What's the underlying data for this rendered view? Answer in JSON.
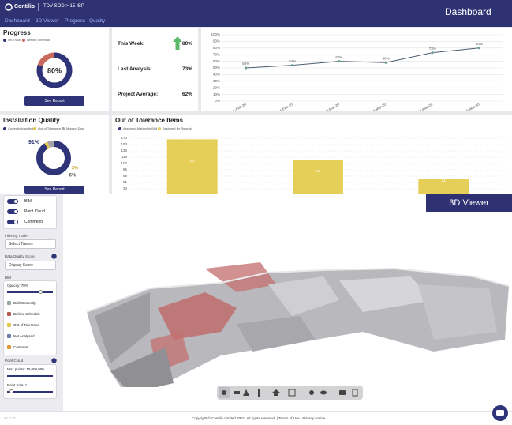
{
  "header": {
    "logo": "Contilio",
    "breadcrumb": "TDV SOD > 15-IBP",
    "page_title": "Dashboard"
  },
  "nav": [
    "Dashboard",
    "3D Viewer",
    "Progress",
    "Quality"
  ],
  "progress": {
    "title": "Progress",
    "type": "donut",
    "series": [
      {
        "name": "On Track",
        "color": "#2e3477",
        "value": 80,
        "value_label": "80%"
      },
      {
        "name": "Behind Schedule",
        "color": "#c8695e",
        "value": 20
      }
    ],
    "button": "See Report"
  },
  "stats": [
    {
      "label": "This Week:",
      "value": "80%"
    },
    {
      "label": "Last Analysis:",
      "value": "73%"
    },
    {
      "label": "Project Average:",
      "value": "62%"
    }
  ],
  "trend_chart": {
    "type": "line",
    "x": [
      "17-Feb-20",
      "24-Feb-20",
      "02-Mar-20",
      "16-Mar-20",
      "23-Mar-20",
      "30-Mar-20"
    ],
    "values": [
      50,
      54,
      60,
      58,
      73,
      80
    ],
    "value_labels": [
      "50%",
      "54%",
      "60%",
      "58%",
      "73%",
      "80%"
    ],
    "color": "#4b5c70",
    "ylim": [
      0,
      100
    ],
    "yticks": [
      {
        "value": 0,
        "label": "0%"
      },
      {
        "value": 10,
        "label": "10%"
      },
      {
        "value": 20,
        "label": "20%"
      },
      {
        "value": 30,
        "label": "30%"
      },
      {
        "value": 40,
        "label": "40%"
      },
      {
        "value": 50,
        "label": "50%"
      },
      {
        "value": 60,
        "label": "60%"
      },
      {
        "value": 70,
        "label": "70%"
      },
      {
        "value": 80,
        "label": "80%"
      },
      {
        "value": 90,
        "label": "90%"
      },
      {
        "value": 100,
        "label": "100%"
      }
    ],
    "grid": true
  },
  "quality": {
    "title": "Installation Quality",
    "type": "donut",
    "series": [
      {
        "name": "Correctly Installed",
        "color": "#2e3477",
        "value": 91,
        "value_label": "91%"
      },
      {
        "name": "Out of Tolerance",
        "color": "#e3c84c",
        "value": 3,
        "value_label": "3%"
      },
      {
        "name": "Missing Data",
        "color": "#a4a4a8",
        "value": 6,
        "value_label": "6%"
      }
    ],
    "button": "See Report"
  },
  "tolerance_chart": {
    "type": "bar",
    "title": "Out of Tolerance Items",
    "categories": [
      null,
      null,
      null
    ],
    "series": [
      {
        "name": "Assigned Marked in BIM",
        "color": "#2e3477",
        "values": [
          null,
          null,
          null
        ]
      },
      {
        "name": "Assigned for Rework",
        "color": "#e6cf58",
        "values": [
          167,
          112,
          61
        ]
      }
    ],
    "ylim": [
      0,
      170
    ],
    "yticks": [
      34,
      51,
      68,
      85,
      102,
      119,
      136,
      153,
      170
    ],
    "grid": true
  },
  "viewer": {
    "tab": "3D Viewer",
    "toggles": [
      "BIM",
      "Point Cloud",
      "Comments"
    ],
    "filter_label": "Filter by Trade",
    "filter_select": "Select Trades",
    "score_label": "Data Quality Score",
    "score_select": "Display Score",
    "bim_label": "BIM",
    "opacity": "Opacity: 78%",
    "legend": [
      {
        "name": "Built Correctly",
        "color": "#9aa89c"
      },
      {
        "name": "Behind Schedule",
        "color": "#b85a55"
      },
      {
        "name": "Out of Tolerance",
        "color": "#e3c84c"
      },
      {
        "name": "Not Analysed",
        "color": "#6d7fa8"
      },
      {
        "name": "Comment",
        "color": "#e09a3c"
      }
    ],
    "point_cloud_label": "Point Cloud",
    "max_points": "Max points: 10,000,000",
    "point_size": "Point Size: 1"
  },
  "footer": {
    "version": "v2.0.77",
    "copyright": "Copyright © Contilio Limited 2021. All rights reserved.",
    "links": [
      "Terms of Use",
      "Privacy Notice"
    ]
  }
}
